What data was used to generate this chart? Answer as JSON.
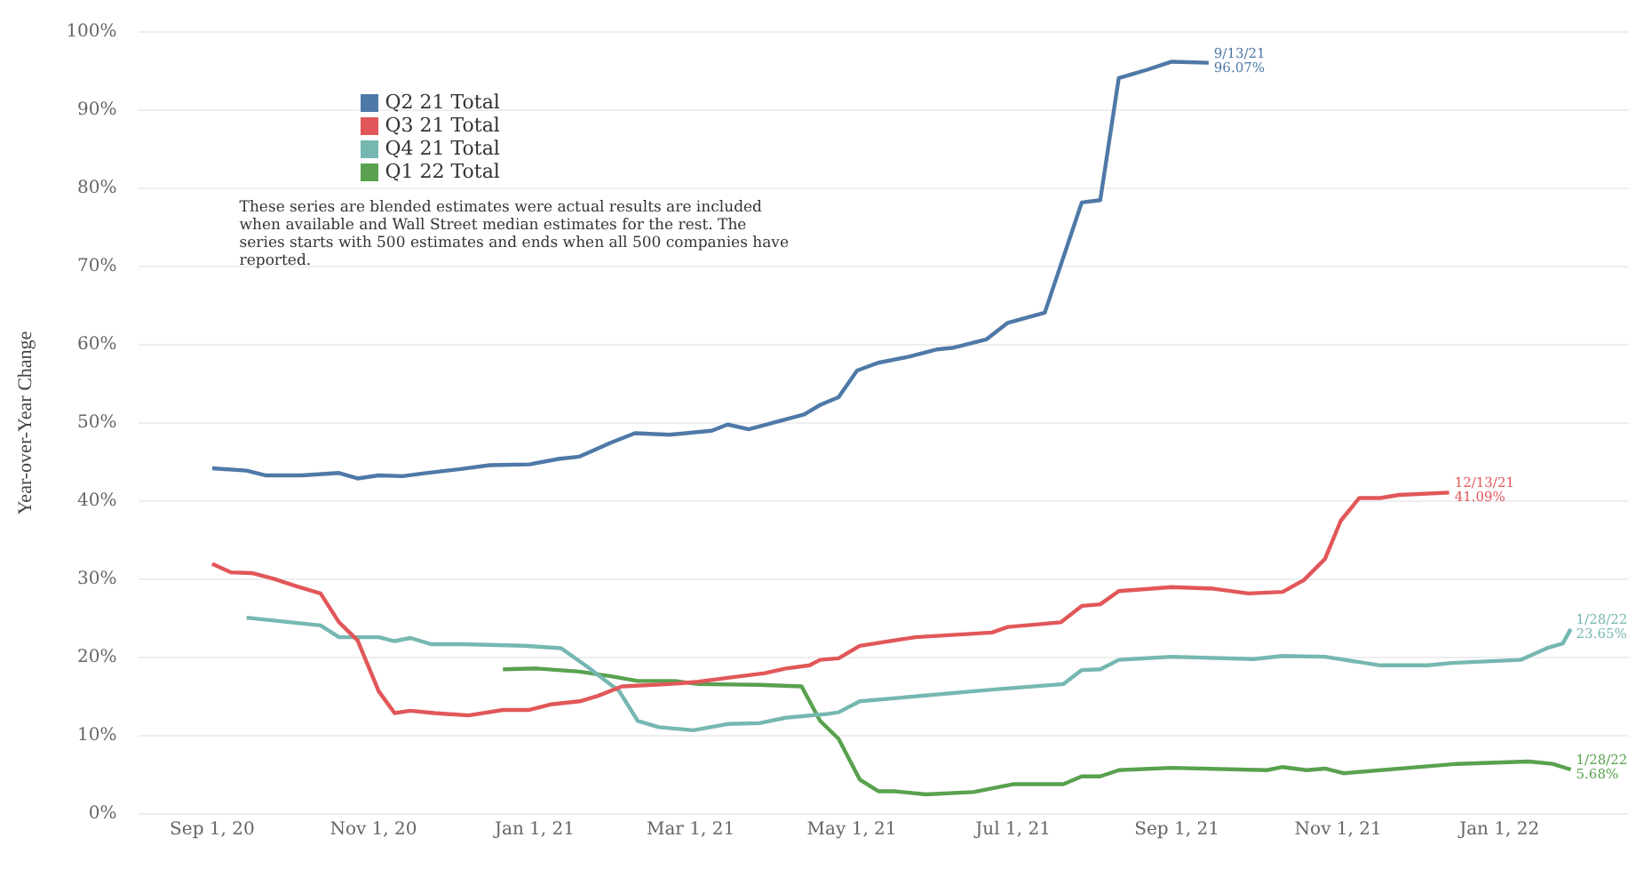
{
  "chart_data": {
    "type": "line",
    "ylabel": "Year-over-Year Change",
    "xlim": [
      "2020-08-04",
      "2022-02-19"
    ],
    "xticks": [
      {
        "value": "2020-09-01",
        "label": "Sep 1, 20"
      },
      {
        "value": "2020-11-01",
        "label": "Nov 1, 20"
      },
      {
        "value": "2021-01-01",
        "label": "Jan 1, 21"
      },
      {
        "value": "2021-03-01",
        "label": "Mar 1, 21"
      },
      {
        "value": "2021-05-01",
        "label": "May 1, 21"
      },
      {
        "value": "2021-07-01",
        "label": "Jul 1, 21"
      },
      {
        "value": "2021-09-01",
        "label": "Sep 1, 21"
      },
      {
        "value": "2021-11-01",
        "label": "Nov 1, 21"
      },
      {
        "value": "2022-01-01",
        "label": "Jan 1, 22"
      }
    ],
    "ylim": [
      0,
      100
    ],
    "yticks": [
      {
        "value": 0,
        "label": "0%"
      },
      {
        "value": 10,
        "label": "10%"
      },
      {
        "value": 20,
        "label": "20%"
      },
      {
        "value": 30,
        "label": "30%"
      },
      {
        "value": 40,
        "label": "40%"
      },
      {
        "value": 50,
        "label": "50%"
      },
      {
        "value": 60,
        "label": "60%"
      },
      {
        "value": 70,
        "label": "70%"
      },
      {
        "value": 80,
        "label": "80%"
      },
      {
        "value": 90,
        "label": "90%"
      },
      {
        "value": 100,
        "label": "100%"
      }
    ],
    "grid": "y",
    "legend": "top left",
    "marker": "none",
    "series": [
      {
        "name": "Q2 21 Total",
        "color": "#4e79a7",
        "x": [
          "2020-09-01",
          "2020-09-14",
          "2020-09-21",
          "2020-10-05",
          "2020-10-19",
          "2020-10-26",
          "2020-11-03",
          "2020-11-12",
          "2020-11-21",
          "2020-12-04",
          "2020-12-15",
          "2020-12-30",
          "2021-01-10",
          "2021-01-18",
          "2021-01-30",
          "2021-02-08",
          "2021-02-21",
          "2021-03-09",
          "2021-03-15",
          "2021-03-23",
          "2021-04-13",
          "2021-04-19",
          "2021-04-26",
          "2021-05-03",
          "2021-05-11",
          "2021-05-23",
          "2021-06-02",
          "2021-06-08",
          "2021-06-21",
          "2021-06-29",
          "2021-07-13",
          "2021-07-27",
          "2021-08-03",
          "2021-08-10",
          "2021-08-21",
          "2021-08-30",
          "2021-09-13"
        ],
        "values": [
          44.2,
          43.9,
          43.3,
          43.3,
          43.6,
          42.9,
          43.3,
          43.2,
          43.6,
          44.1,
          44.6,
          44.7,
          45.4,
          45.7,
          47.5,
          48.7,
          48.5,
          49.0,
          49.8,
          49.2,
          51.1,
          52.3,
          53.3,
          56.7,
          57.7,
          58.5,
          59.4,
          59.6,
          60.7,
          62.8,
          64.1,
          78.2,
          78.5,
          94.1,
          95.2,
          96.2,
          96.07
        ]
      },
      {
        "name": "Q3 21 Total",
        "color": "#e15759",
        "x": [
          "2020-09-01",
          "2020-09-08",
          "2020-09-16",
          "2020-09-24",
          "2020-10-03",
          "2020-10-12",
          "2020-10-19",
          "2020-10-26",
          "2020-11-03",
          "2020-11-09",
          "2020-11-15",
          "2020-11-24",
          "2020-12-07",
          "2020-12-20",
          "2020-12-30",
          "2021-01-07",
          "2021-01-18",
          "2021-01-25",
          "2021-02-03",
          "2021-02-21",
          "2021-03-04",
          "2021-03-15",
          "2021-03-29",
          "2021-04-06",
          "2021-04-15",
          "2021-04-19",
          "2021-04-26",
          "2021-05-04",
          "2021-05-25",
          "2021-06-23",
          "2021-06-29",
          "2021-07-19",
          "2021-07-27",
          "2021-08-03",
          "2021-08-10",
          "2021-08-30",
          "2021-09-15",
          "2021-09-28",
          "2021-10-11",
          "2021-10-19",
          "2021-10-27",
          "2021-11-02",
          "2021-11-09",
          "2021-11-17",
          "2021-11-24",
          "2021-12-13"
        ],
        "values": [
          32.0,
          30.9,
          30.8,
          30.1,
          29.1,
          28.2,
          24.5,
          22.2,
          15.7,
          12.9,
          13.2,
          12.9,
          12.6,
          13.3,
          13.3,
          14.0,
          14.4,
          15.1,
          16.3,
          16.6,
          16.9,
          17.4,
          18.0,
          18.6,
          19.0,
          19.7,
          19.9,
          21.5,
          22.6,
          23.2,
          23.9,
          24.5,
          26.6,
          26.8,
          28.5,
          29.0,
          28.8,
          28.2,
          28.4,
          29.9,
          32.6,
          37.5,
          40.4,
          40.4,
          40.8,
          41.09
        ]
      },
      {
        "name": "Q4 21 Total",
        "color": "#76b7b2",
        "x": [
          "2020-09-14",
          "2020-10-12",
          "2020-10-19",
          "2020-11-03",
          "2020-11-09",
          "2020-11-15",
          "2020-11-23",
          "2020-12-05",
          "2020-12-28",
          "2021-01-11",
          "2021-01-21",
          "2021-02-02",
          "2021-02-09",
          "2021-02-17",
          "2021-03-02",
          "2021-03-15",
          "2021-03-27",
          "2021-04-06",
          "2021-04-22",
          "2021-04-26",
          "2021-05-04",
          "2021-06-23",
          "2021-07-20",
          "2021-07-27",
          "2021-08-03",
          "2021-08-10",
          "2021-08-30",
          "2021-09-30",
          "2021-10-11",
          "2021-10-27",
          "2021-11-17",
          "2021-12-05",
          "2021-12-14",
          "2022-01-09",
          "2022-01-19",
          "2022-01-25",
          "2022-01-28"
        ],
        "values": [
          25.1,
          24.1,
          22.6,
          22.6,
          22.1,
          22.5,
          21.7,
          21.7,
          21.5,
          21.2,
          18.8,
          15.7,
          11.9,
          11.1,
          10.7,
          11.5,
          11.6,
          12.3,
          12.8,
          13.0,
          14.4,
          15.9,
          16.6,
          18.4,
          18.5,
          19.7,
          20.1,
          19.8,
          20.2,
          20.1,
          19.0,
          19.0,
          19.3,
          19.7,
          21.2,
          21.8,
          23.65
        ]
      },
      {
        "name": "Q1 22 Total",
        "color": "#59a14f",
        "x": [
          "2020-12-20",
          "2021-01-02",
          "2021-01-18",
          "2021-01-30",
          "2021-02-09",
          "2021-02-23",
          "2021-03-04",
          "2021-03-27",
          "2021-04-12",
          "2021-04-19",
          "2021-04-26",
          "2021-05-04",
          "2021-05-11",
          "2021-05-17",
          "2021-05-29",
          "2021-06-16",
          "2021-07-01",
          "2021-07-20",
          "2021-07-27",
          "2021-08-03",
          "2021-08-10",
          "2021-08-30",
          "2021-10-05",
          "2021-10-11",
          "2021-10-20",
          "2021-10-27",
          "2021-11-03",
          "2021-12-05",
          "2021-12-16",
          "2022-01-12",
          "2022-01-21",
          "2022-01-28"
        ],
        "values": [
          18.5,
          18.6,
          18.2,
          17.6,
          17.0,
          17.0,
          16.6,
          16.5,
          16.3,
          11.9,
          9.6,
          4.4,
          2.9,
          2.9,
          2.5,
          2.8,
          3.8,
          3.8,
          4.8,
          4.8,
          5.6,
          5.9,
          5.6,
          6.0,
          5.6,
          5.8,
          5.2,
          6.1,
          6.4,
          6.7,
          6.4,
          5.68
        ]
      }
    ],
    "annotations": [
      "These series are blended estimates were actual results are included when available and Wall Street median estimates for the rest. The series starts with 500 estimates and ends when all 500 companies have reported.",
      {
        "text": "9/13/21\n96.07%",
        "x": "2021-09-13",
        "y": 96.07
      },
      {
        "text": "12/13/21\n41.09%",
        "x": "2021-12-13",
        "y": 41.09
      },
      {
        "text": "1/28/22\n23.65%",
        "x": "2022-01-28",
        "y": 23.65
      },
      {
        "text": "1/28/22\n5.68%",
        "x": "2022-01-28",
        "y": 5.68
      }
    ]
  }
}
